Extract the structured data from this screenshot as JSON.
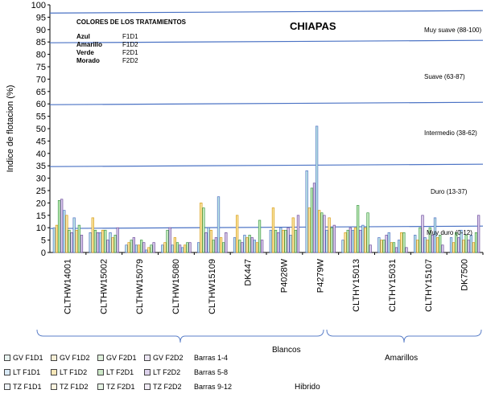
{
  "chart_data": {
    "type": "bar",
    "title": "CHIAPAS",
    "ylabel": "Indice de flotacion (%)",
    "xlabel": "",
    "ylim": [
      0,
      100
    ],
    "yticks": [
      0,
      5,
      10,
      15,
      20,
      25,
      30,
      35,
      40,
      45,
      50,
      55,
      60,
      65,
      70,
      75,
      80,
      85,
      90,
      95,
      100
    ],
    "grid": false,
    "categories": [
      "CLTHW14001",
      "CLTHW15002",
      "CLTHW15079",
      "CLTHW15080",
      "CLTHW15109",
      "DK447",
      "P4028W",
      "P4279W",
      "CLTHY15013",
      "CLTHY15031",
      "CLTHY15107",
      "DK7500"
    ],
    "bar_labels": [
      "GV F1D1",
      "GV F1D2",
      "GV F2D1",
      "GV F2D2",
      "LT F1D1",
      "LT F1D2",
      "LT F2D1",
      "LT F2D2",
      "TZ F1D1",
      "TZ F1D2",
      "TZ F2D1",
      "TZ F2D2"
    ],
    "values": [
      [
        10,
        11,
        21,
        21.5,
        17,
        15,
        9,
        8,
        14,
        9,
        11,
        7
      ],
      [
        8,
        14,
        9,
        8,
        8,
        9,
        9,
        5,
        8,
        6,
        7,
        10
      ],
      [
        3,
        4,
        5,
        6,
        3,
        3,
        5,
        4,
        1,
        2,
        3,
        4
      ],
      [
        3,
        4,
        9,
        10,
        3,
        6,
        4,
        3,
        2,
        3,
        4,
        4
      ],
      [
        4,
        20,
        18,
        8,
        10,
        9,
        5,
        6,
        22.5,
        6,
        4,
        8
      ],
      [
        6,
        15,
        5,
        4,
        7,
        6,
        7,
        6,
        5,
        4,
        13,
        5
      ],
      [
        9,
        18,
        9,
        8,
        10,
        9,
        9,
        10,
        7,
        14,
        9,
        15
      ],
      [
        33,
        18,
        26,
        28,
        51,
        17,
        16,
        15,
        9,
        14,
        10,
        11
      ],
      [
        5,
        8,
        9,
        10,
        9,
        10,
        19,
        9,
        11,
        10,
        16,
        3
      ],
      [
        6,
        5,
        5,
        7,
        8,
        4,
        4,
        2,
        5,
        8,
        8,
        2
      ],
      [
        7,
        5,
        10,
        15,
        6,
        5,
        10,
        7,
        14,
        6,
        7,
        3
      ],
      [
        6,
        4,
        8,
        6,
        9,
        5,
        7,
        5,
        7,
        4,
        8,
        15
      ]
    ],
    "thresholds": [
      {
        "value": 97,
        "label": ""
      },
      {
        "value": 85,
        "label": "Muy suave (88-100)"
      },
      {
        "value": 60,
        "label": "Suave (63-87)"
      },
      {
        "value": 35,
        "label": "Intermedio (38-62)"
      },
      {
        "value": 10,
        "label": "Duro (13-37)"
      }
    ],
    "zone_labels": [
      {
        "label": "Muy suave (88-100)",
        "y": 92
      },
      {
        "label": "Suave (63-87)",
        "y": 72
      },
      {
        "label": "Intermedio (38-62)",
        "y": 48
      },
      {
        "label": "Duro (13-37)",
        "y": 24
      },
      {
        "label": "Muy duro (0-12)",
        "y": 8
      }
    ],
    "color_key": {
      "title": "COLORES DE LOS TRATAMIENTOS",
      "rows": [
        {
          "name": "Azul",
          "code": "F1D1",
          "color": "#4f6fc4"
        },
        {
          "name": "Amarillo",
          "code": "F1D2",
          "color": "#f0c419"
        },
        {
          "name": "Verde",
          "code": "F2D1",
          "color": "#4caf50"
        },
        {
          "name": "Morado",
          "code": "F2D2",
          "color": "#7b52a6"
        }
      ]
    },
    "legend_rows": [
      {
        "items": [
          "GV F1D1",
          "GV F1D2",
          "GV F2D1",
          "GV F2D2"
        ],
        "note": "Barras 1-4",
        "fill": "#e8f3f0"
      },
      {
        "items": [
          "LT F1D1",
          "LT F1D2",
          "LT F2D1",
          "LT F2D2"
        ],
        "note": "Barras 5-8",
        "fill": "#d9eaf7"
      },
      {
        "items": [
          "TZ F1D1",
          "TZ F1D2",
          "TZ F2D1",
          "TZ F2D2"
        ],
        "note": "Barras 9-12",
        "fill": "#eeeeee"
      }
    ],
    "groups": [
      {
        "label": "Blancos",
        "from": 0,
        "to": 7
      },
      {
        "label": "Amarillos",
        "from": 8,
        "to": 11
      }
    ],
    "footer_label": "Hibrido"
  }
}
